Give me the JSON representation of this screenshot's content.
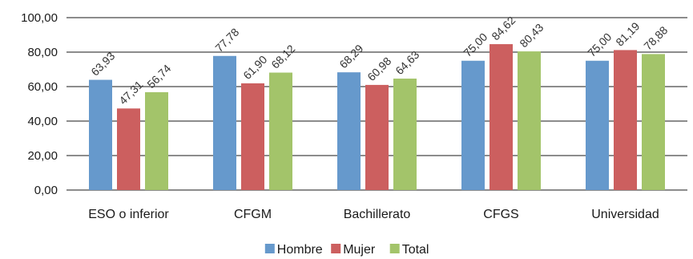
{
  "chart_data": {
    "type": "bar",
    "categories": [
      "ESO o inferior",
      "CFGM",
      "Bachillerato",
      "CFGS",
      "Universidad"
    ],
    "series": [
      {
        "name": "Hombre",
        "color": "#6699cc",
        "values": [
          63.93,
          77.78,
          68.29,
          75.0,
          75.0
        ],
        "labels": [
          "63,93",
          "77,78",
          "68,29",
          "75,00",
          "75,00"
        ]
      },
      {
        "name": "Mujer",
        "color": "#cc5f5f",
        "values": [
          47.31,
          61.9,
          60.98,
          84.62,
          81.19
        ],
        "labels": [
          "47,31",
          "61,90",
          "60,98",
          "84,62",
          "81,19"
        ]
      },
      {
        "name": "Total",
        "color": "#a3c46a",
        "values": [
          56.74,
          68.12,
          64.63,
          80.43,
          78.88
        ],
        "labels": [
          "56,74",
          "68,12",
          "64,63",
          "80,43",
          "78,88"
        ]
      }
    ],
    "ylim": [
      0,
      100
    ],
    "yticks": [
      0,
      20,
      40,
      60,
      80,
      100
    ],
    "ytick_labels": [
      "0,00",
      "20,00",
      "40,00",
      "60,00",
      "80,00",
      "100,00"
    ],
    "grid": true,
    "legend_position": "bottom",
    "title": "",
    "xlabel": "",
    "ylabel": ""
  }
}
